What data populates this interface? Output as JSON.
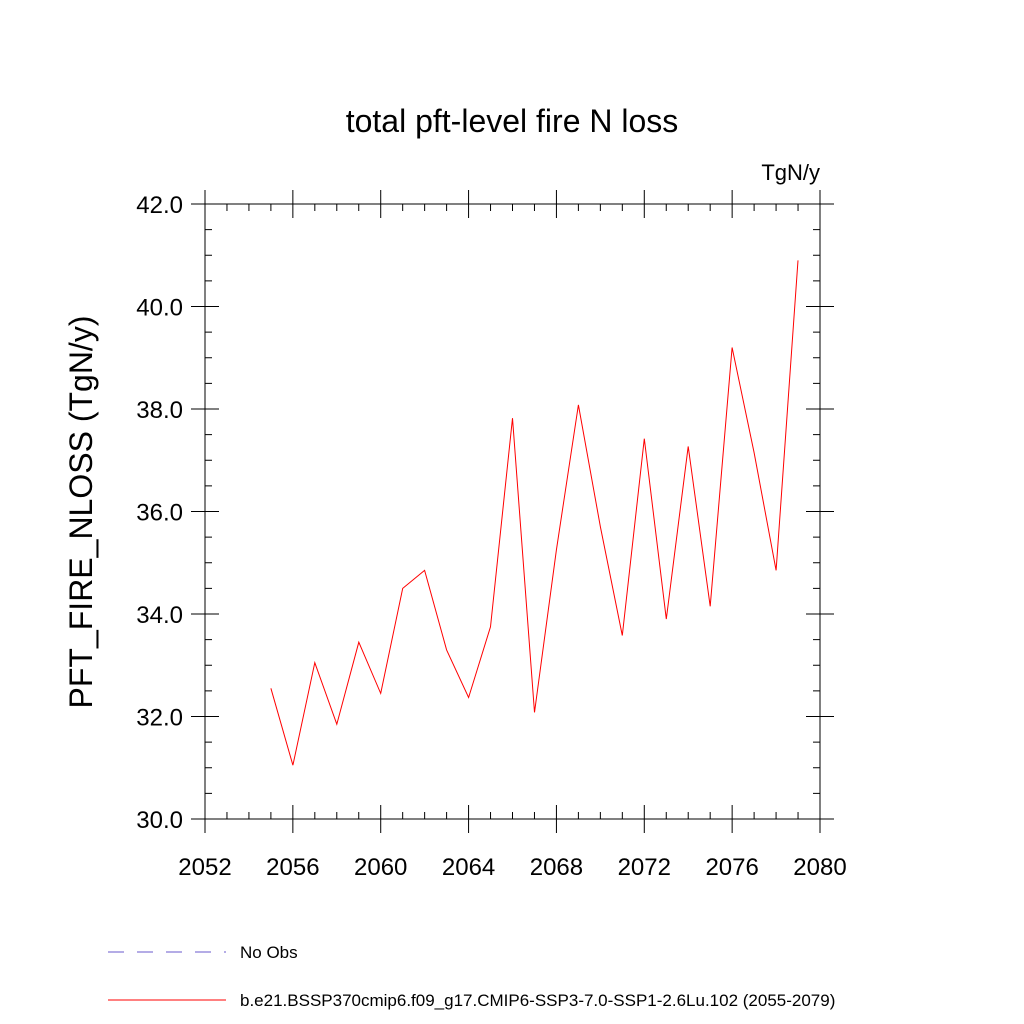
{
  "chart_data": {
    "type": "line",
    "title": "total pft-level fire N loss",
    "units": "TgN/y",
    "ylabel": "PFT_FIRE_NLOSS  (TgN/y)",
    "xlabel": "",
    "xlim": [
      2052,
      2080
    ],
    "ylim": [
      30.0,
      42.0
    ],
    "xticks": [
      2052,
      2056,
      2060,
      2064,
      2068,
      2072,
      2076,
      2080
    ],
    "yticks": [
      30.0,
      32.0,
      34.0,
      36.0,
      38.0,
      40.0,
      42.0
    ],
    "ytick_labels": [
      "30.0",
      "32.0",
      "34.0",
      "36.0",
      "38.0",
      "40.0",
      "42.0"
    ],
    "grid": false,
    "legend_position": "bottom",
    "legend": [
      {
        "label": "No Obs",
        "color": "#6a5acd",
        "style": "dashed"
      },
      {
        "label": "b.e21.BSSP370cmip6.f09_g17.CMIP6-SSP3-7.0-SSP1-2.6Lu.102 (2055-2079)",
        "color": "#ff0000",
        "style": "solid"
      }
    ],
    "series": [
      {
        "color": "#ff0000",
        "x": [
          2055,
          2056,
          2057,
          2058,
          2059,
          2060,
          2061,
          2062,
          2063,
          2064,
          2065,
          2066,
          2067,
          2068,
          2069,
          2070,
          2071,
          2072,
          2073,
          2074,
          2075,
          2076,
          2077,
          2078,
          2079
        ],
        "y": [
          32.55,
          31.05,
          33.05,
          31.85,
          33.45,
          32.45,
          34.5,
          34.85,
          33.3,
          32.37,
          33.75,
          37.82,
          32.08,
          35.25,
          38.08,
          35.7,
          33.58,
          37.42,
          33.9,
          37.27,
          34.15,
          39.2,
          37.15,
          34.85,
          40.9
        ]
      }
    ]
  }
}
